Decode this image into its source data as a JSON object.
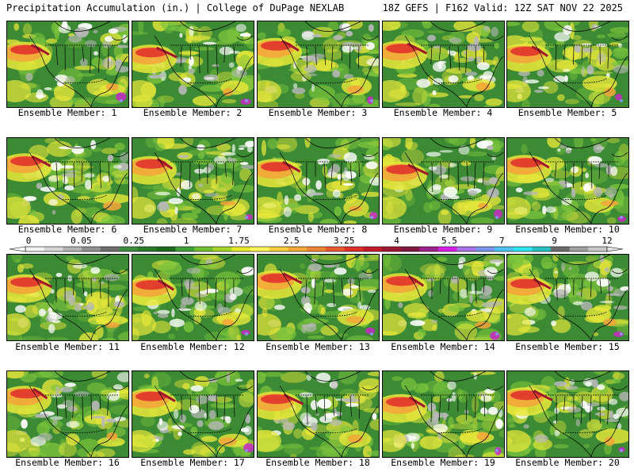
{
  "header": {
    "left": "Precipitation Accumulation (in.) | College of DuPage NEXLAB",
    "right": "18Z GEFS | F162 Valid: 12Z SAT NOV 22 2025"
  },
  "colorbar": {
    "tick_labels": [
      "0",
      "0.05",
      "0.25",
      "1",
      "1.75",
      "2.5",
      "3.25",
      "4",
      "5.5",
      "7",
      "9",
      "12"
    ],
    "colors": [
      "#f2f2f2",
      "#d6d6d6",
      "#b4b4b4",
      "#919191",
      "#6e6e6e",
      "#3f8a3f",
      "#2a7a2a",
      "#1f6a1f",
      "#40a03a",
      "#72c030",
      "#a6d62a",
      "#e8e82c",
      "#fff35a",
      "#f8cf3e",
      "#f4aa38",
      "#ef8434",
      "#ea5a30",
      "#e0302c",
      "#c21c2a",
      "#9e1630",
      "#801840",
      "#a0208a",
      "#d81ee6",
      "#a874e8",
      "#7896e8",
      "#4cc2f0",
      "#2ee6ee",
      "#26c0c0",
      "#6c6c6c",
      "#a0a0a0",
      "#c8c8c8"
    ],
    "icon": "triangle-arrow-icon"
  },
  "members": [
    {
      "label": "Ensemble Member: 1"
    },
    {
      "label": "Ensemble Member: 2"
    },
    {
      "label": "Ensemble Member: 3"
    },
    {
      "label": "Ensemble Member: 4"
    },
    {
      "label": "Ensemble Member: 5"
    },
    {
      "label": "Ensemble Member: 6"
    },
    {
      "label": "Ensemble Member: 7"
    },
    {
      "label": "Ensemble Member: 8"
    },
    {
      "label": "Ensemble Member: 9"
    },
    {
      "label": "Ensemble Member: 10"
    },
    {
      "label": "Ensemble Member: 11"
    },
    {
      "label": "Ensemble Member: 12"
    },
    {
      "label": "Ensemble Member: 13"
    },
    {
      "label": "Ensemble Member: 14"
    },
    {
      "label": "Ensemble Member: 15"
    },
    {
      "label": "Ensemble Member: 16"
    },
    {
      "label": "Ensemble Member: 17"
    },
    {
      "label": "Ensemble Member: 18"
    },
    {
      "label": "Ensemble Member: 19"
    },
    {
      "label": "Ensemble Member: 20"
    }
  ],
  "map_colors": {
    "ocean_base": "#3c8a34",
    "land_base": "#2f7a2a",
    "light_green": "#7cc43c",
    "yellow": "#e8e83a",
    "orange": "#f4a63a",
    "red": "#e0342c",
    "dark_red": "#a0182c",
    "white": "#ffffff",
    "gray": "#b8b8b8",
    "magenta": "#c828c8",
    "blue": "#8898f0"
  }
}
